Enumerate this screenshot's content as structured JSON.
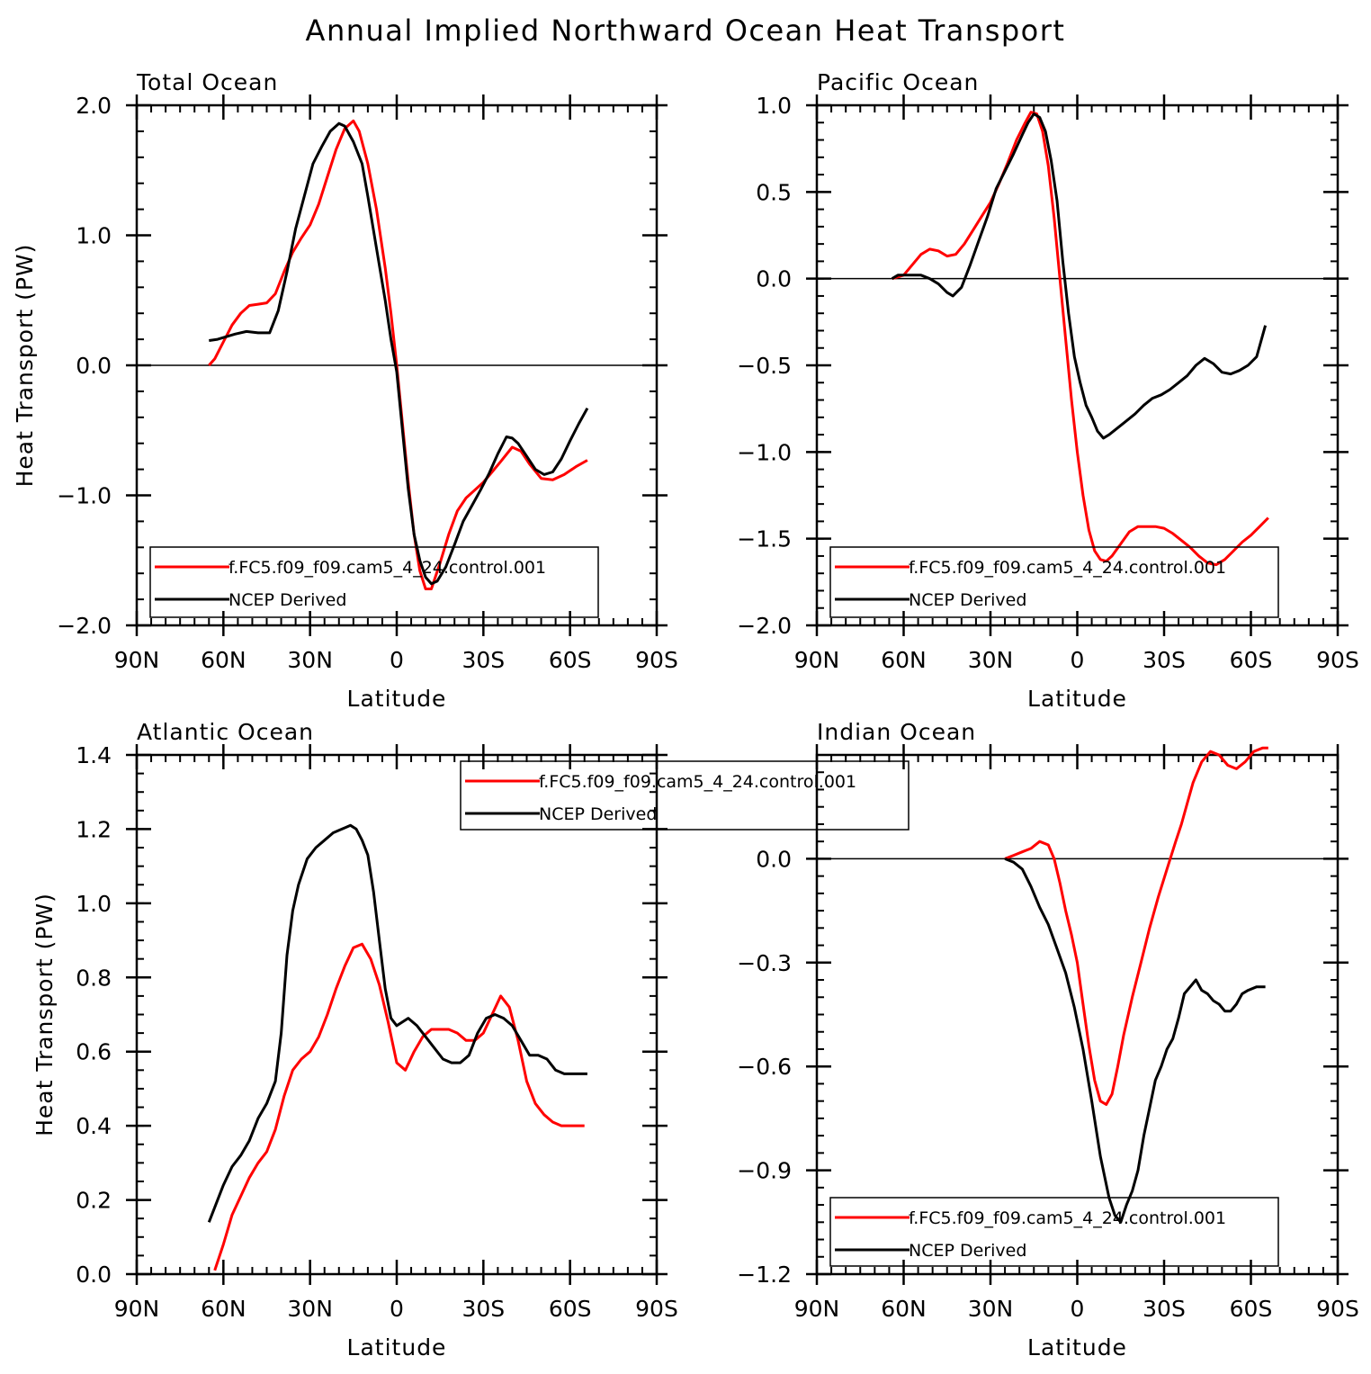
{
  "figure": {
    "title": "Annual Implied Northward Ocean Heat Transport"
  },
  "colors": {
    "model": "#ff0000",
    "obs": "#000000",
    "axis": "#000000"
  },
  "series_names": [
    "f.FC5.f09_f09.cam5_4_24.control.001",
    "NCEP Derived"
  ],
  "chart_data": [
    {
      "type": "line",
      "title": "Total Ocean",
      "xlabel": "Latitude",
      "ylabel": "Heat Transport (PW)",
      "xlim": [
        90,
        -90
      ],
      "ylim": [
        -2.0,
        2.0
      ],
      "x_ticks": [
        90,
        60,
        30,
        0,
        -30,
        -60,
        -90
      ],
      "x_tick_labels": [
        "90N",
        "60N",
        "30N",
        "0",
        "30S",
        "60S",
        "90S"
      ],
      "y_ticks": [
        -2.0,
        -1.0,
        0.0,
        1.0,
        2.0
      ],
      "y_tick_labels": [
        "−2.0",
        "−1.0",
        "0.0",
        "1.0",
        "2.0"
      ],
      "y_minor_step": 0.2,
      "zero_line": true,
      "legend_position": "bottom-left",
      "series": [
        {
          "name": "f.FC5.f09_f09.cam5_4_24.control.001",
          "color": "#ff0000",
          "x": [
            65,
            63,
            60,
            57,
            54,
            51,
            48,
            45,
            42,
            39,
            36,
            33,
            30,
            27,
            24,
            21,
            18,
            15,
            13,
            10,
            7,
            4,
            2,
            0,
            -2,
            -4,
            -6,
            -8,
            -10,
            -12,
            -15,
            -18,
            -21,
            -24,
            -27,
            -30,
            -33,
            -36,
            -40,
            -43,
            -46,
            -50,
            -54,
            -58,
            -62,
            -66
          ],
          "y": [
            0.0,
            0.05,
            0.18,
            0.31,
            0.4,
            0.46,
            0.47,
            0.48,
            0.55,
            0.72,
            0.87,
            0.98,
            1.08,
            1.24,
            1.45,
            1.66,
            1.82,
            1.88,
            1.8,
            1.55,
            1.2,
            0.75,
            0.4,
            0.0,
            -0.45,
            -0.9,
            -1.3,
            -1.58,
            -1.72,
            -1.72,
            -1.52,
            -1.3,
            -1.12,
            -1.02,
            -0.96,
            -0.9,
            -0.82,
            -0.74,
            -0.63,
            -0.66,
            -0.76,
            -0.87,
            -0.88,
            -0.84,
            -0.78,
            -0.73
          ]
        },
        {
          "name": "NCEP Derived",
          "color": "#000000",
          "x": [
            65,
            62,
            59,
            56,
            52,
            48,
            44,
            41,
            38,
            35,
            32,
            29,
            26,
            23,
            20,
            18,
            15,
            12,
            10,
            7,
            4,
            2,
            0,
            -2,
            -4,
            -6,
            -8,
            -10,
            -12,
            -14,
            -17,
            -20,
            -23,
            -26,
            -29,
            -32,
            -35,
            -38,
            -40,
            -42,
            -45,
            -48,
            -51,
            -54,
            -57,
            -60,
            -63,
            -66
          ],
          "y": [
            0.19,
            0.2,
            0.22,
            0.24,
            0.26,
            0.25,
            0.25,
            0.42,
            0.72,
            1.05,
            1.3,
            1.55,
            1.68,
            1.8,
            1.86,
            1.84,
            1.72,
            1.55,
            1.3,
            0.9,
            0.5,
            0.2,
            -0.05,
            -0.5,
            -0.95,
            -1.3,
            -1.5,
            -1.63,
            -1.68,
            -1.66,
            -1.55,
            -1.38,
            -1.2,
            -1.08,
            -0.96,
            -0.83,
            -0.68,
            -0.55,
            -0.56,
            -0.6,
            -0.7,
            -0.8,
            -0.84,
            -0.82,
            -0.72,
            -0.58,
            -0.45,
            -0.33
          ]
        }
      ]
    },
    {
      "type": "line",
      "title": "Pacific Ocean",
      "xlabel": "Latitude",
      "ylabel": "",
      "xlim": [
        90,
        -90
      ],
      "ylim": [
        -2.0,
        1.0
      ],
      "x_ticks": [
        90,
        60,
        30,
        0,
        -30,
        -60,
        -90
      ],
      "x_tick_labels": [
        "90N",
        "60N",
        "30N",
        "0",
        "30S",
        "60S",
        "90S"
      ],
      "y_ticks": [
        -2.0,
        -1.5,
        -1.0,
        -0.5,
        0.0,
        0.5,
        1.0
      ],
      "y_tick_labels": [
        "−2.0",
        "−1.5",
        "−1.0",
        "−0.5",
        "0.0",
        "0.5",
        "1.0"
      ],
      "y_minor_step": 0.1,
      "zero_line": true,
      "legend_position": "bottom-left",
      "series": [
        {
          "name": "f.FC5.f09_f09.cam5_4_24.control.001",
          "color": "#ff0000",
          "x": [
            64,
            60,
            57,
            54,
            51,
            48,
            45,
            42,
            39,
            36,
            33,
            30,
            27,
            24,
            21,
            18,
            16,
            14,
            12,
            10,
            8,
            6,
            4,
            2,
            0,
            -2,
            -4,
            -6,
            -8,
            -10,
            -12,
            -15,
            -18,
            -21,
            -24,
            -27,
            -30,
            -33,
            -36,
            -39,
            -42,
            -45,
            -48,
            -51,
            -54,
            -57,
            -60,
            -63,
            -66
          ],
          "y": [
            0.0,
            0.02,
            0.08,
            0.14,
            0.17,
            0.16,
            0.13,
            0.14,
            0.2,
            0.28,
            0.36,
            0.44,
            0.55,
            0.67,
            0.8,
            0.9,
            0.96,
            0.95,
            0.85,
            0.65,
            0.35,
            0.0,
            -0.35,
            -0.7,
            -1.0,
            -1.25,
            -1.45,
            -1.57,
            -1.62,
            -1.63,
            -1.6,
            -1.53,
            -1.46,
            -1.43,
            -1.43,
            -1.43,
            -1.44,
            -1.47,
            -1.51,
            -1.55,
            -1.6,
            -1.64,
            -1.65,
            -1.62,
            -1.57,
            -1.52,
            -1.48,
            -1.43,
            -1.38
          ]
        },
        {
          "name": "NCEP Derived",
          "color": "#000000",
          "x": [
            64,
            62,
            60,
            57,
            54,
            51,
            48,
            45,
            43,
            40,
            37,
            34,
            31,
            28,
            25,
            22,
            19,
            17,
            15,
            13,
            11,
            9,
            7,
            5,
            3,
            1,
            -1,
            -3,
            -5,
            -7,
            -9,
            -11,
            -14,
            -17,
            -20,
            -23,
            -26,
            -29,
            -32,
            -35,
            -38,
            -41,
            -44,
            -47,
            -50,
            -53,
            -56,
            -59,
            -62,
            -65
          ],
          "y": [
            0.0,
            0.02,
            0.02,
            0.02,
            0.02,
            0.0,
            -0.03,
            -0.08,
            -0.1,
            -0.05,
            0.08,
            0.22,
            0.36,
            0.52,
            0.62,
            0.72,
            0.83,
            0.9,
            0.95,
            0.93,
            0.85,
            0.68,
            0.45,
            0.1,
            -0.2,
            -0.45,
            -0.6,
            -0.73,
            -0.8,
            -0.88,
            -0.92,
            -0.9,
            -0.86,
            -0.82,
            -0.78,
            -0.73,
            -0.69,
            -0.67,
            -0.64,
            -0.6,
            -0.56,
            -0.5,
            -0.46,
            -0.49,
            -0.54,
            -0.55,
            -0.53,
            -0.5,
            -0.45,
            -0.27
          ]
        }
      ]
    },
    {
      "type": "line",
      "title": "Atlantic Ocean",
      "xlabel": "Latitude",
      "ylabel": "Heat Transport (PW)",
      "xlim": [
        90,
        -90
      ],
      "ylim": [
        0.0,
        1.4
      ],
      "x_ticks": [
        90,
        60,
        30,
        0,
        -30,
        -60,
        -90
      ],
      "x_tick_labels": [
        "90N",
        "60N",
        "30N",
        "0",
        "30S",
        "60S",
        "90S"
      ],
      "y_ticks": [
        0.0,
        0.2,
        0.4,
        0.6,
        0.8,
        1.0,
        1.2,
        1.4
      ],
      "y_tick_labels": [
        "0.0",
        "0.2",
        "0.4",
        "0.6",
        "0.8",
        "1.0",
        "1.2",
        "1.4"
      ],
      "y_minor_step": 0.05,
      "zero_line": false,
      "legend_position": "top-center",
      "series": [
        {
          "name": "f.FC5.f09_f09.cam5_4_24.control.001",
          "color": "#ff0000",
          "x": [
            63,
            60,
            57,
            54,
            51,
            48,
            45,
            42,
            39,
            36,
            33,
            30,
            27,
            24,
            21,
            18,
            15,
            12,
            9,
            6,
            3,
            0,
            -3,
            -6,
            -9,
            -12,
            -15,
            -18,
            -21,
            -24,
            -27,
            -30,
            -33,
            -36,
            -39,
            -42,
            -45,
            -48,
            -51,
            -54,
            -57,
            -60,
            -63,
            -65
          ],
          "y": [
            0.01,
            0.08,
            0.16,
            0.21,
            0.26,
            0.3,
            0.33,
            0.39,
            0.48,
            0.55,
            0.58,
            0.6,
            0.64,
            0.7,
            0.77,
            0.83,
            0.88,
            0.89,
            0.85,
            0.78,
            0.68,
            0.57,
            0.55,
            0.6,
            0.64,
            0.66,
            0.66,
            0.66,
            0.65,
            0.63,
            0.63,
            0.65,
            0.7,
            0.75,
            0.72,
            0.63,
            0.52,
            0.46,
            0.43,
            0.41,
            0.4,
            0.4,
            0.4,
            0.4
          ]
        },
        {
          "name": "NCEP Derived",
          "color": "#000000",
          "x": [
            65,
            63,
            60,
            57,
            54,
            51,
            48,
            45,
            42,
            40,
            38,
            36,
            34,
            31,
            28,
            25,
            22,
            19,
            16,
            14,
            12,
            10,
            8,
            6,
            4,
            2,
            0,
            -2,
            -4,
            -7,
            -10,
            -13,
            -16,
            -19,
            -22,
            -25,
            -28,
            -31,
            -34,
            -37,
            -40,
            -43,
            -46,
            -49,
            -52,
            -55,
            -58,
            -61,
            -64,
            -66
          ],
          "y": [
            0.14,
            0.18,
            0.24,
            0.29,
            0.32,
            0.36,
            0.42,
            0.46,
            0.52,
            0.65,
            0.86,
            0.98,
            1.05,
            1.12,
            1.15,
            1.17,
            1.19,
            1.2,
            1.21,
            1.2,
            1.17,
            1.13,
            1.03,
            0.9,
            0.77,
            0.69,
            0.67,
            0.68,
            0.69,
            0.67,
            0.64,
            0.61,
            0.58,
            0.57,
            0.57,
            0.59,
            0.65,
            0.69,
            0.7,
            0.69,
            0.67,
            0.63,
            0.59,
            0.59,
            0.58,
            0.55,
            0.54,
            0.54,
            0.54,
            0.54
          ]
        }
      ]
    },
    {
      "type": "line",
      "title": "Indian Ocean",
      "xlabel": "Latitude",
      "ylabel": "",
      "xlim": [
        90,
        -90
      ],
      "ylim": [
        -1.2,
        0.3
      ],
      "x_ticks": [
        90,
        60,
        30,
        0,
        -30,
        -60,
        -90
      ],
      "x_tick_labels": [
        "90N",
        "60N",
        "30N",
        "0",
        "30S",
        "60S",
        "90S"
      ],
      "y_ticks": [
        -1.2,
        -0.9,
        -0.6,
        -0.3,
        0.0
      ],
      "y_tick_labels": [
        "−1.2",
        "−0.9",
        "−0.6",
        "−0.3",
        "0.0"
      ],
      "y_minor_step": 0.05,
      "zero_line": true,
      "legend_position": "bottom-left",
      "series": [
        {
          "name": "f.FC5.f09_f09.cam5_4_24.control.001",
          "color": "#ff0000",
          "x": [
            25,
            22,
            19,
            16,
            13,
            10,
            8,
            6,
            4,
            2,
            0,
            -2,
            -4,
            -6,
            -8,
            -10,
            -12,
            -14,
            -16,
            -19,
            -22,
            -25,
            -28,
            -31,
            -34,
            -36,
            -38,
            -40,
            -43,
            -46,
            -49,
            -52,
            -55,
            -58,
            -61,
            -64,
            -66
          ],
          "y": [
            0.0,
            0.01,
            0.02,
            0.03,
            0.05,
            0.04,
            0.0,
            -0.07,
            -0.15,
            -0.22,
            -0.3,
            -0.42,
            -0.54,
            -0.64,
            -0.7,
            -0.71,
            -0.68,
            -0.6,
            -0.51,
            -0.4,
            -0.3,
            -0.2,
            -0.11,
            -0.03,
            0.05,
            0.1,
            0.16,
            0.22,
            0.28,
            0.31,
            0.3,
            0.27,
            0.26,
            0.28,
            0.31,
            0.32,
            0.32
          ]
        },
        {
          "name": "NCEP Derived",
          "color": "#000000",
          "x": [
            25,
            22,
            19,
            16,
            13,
            10,
            7,
            4,
            1,
            -2,
            -5,
            -8,
            -11,
            -13,
            -15,
            -17,
            -19,
            -21,
            -23,
            -25,
            -27,
            -29,
            -31,
            -33,
            -35,
            -37,
            -39,
            -41,
            -43,
            -45,
            -47,
            -49,
            -51,
            -53,
            -55,
            -57,
            -59,
            -62,
            -65
          ],
          "y": [
            0.0,
            -0.01,
            -0.03,
            -0.08,
            -0.14,
            -0.19,
            -0.26,
            -0.33,
            -0.43,
            -0.55,
            -0.7,
            -0.86,
            -0.98,
            -1.03,
            -1.05,
            -1.0,
            -0.96,
            -0.9,
            -0.8,
            -0.72,
            -0.64,
            -0.6,
            -0.55,
            -0.52,
            -0.46,
            -0.39,
            -0.37,
            -0.35,
            -0.38,
            -0.39,
            -0.41,
            -0.42,
            -0.44,
            -0.44,
            -0.42,
            -0.39,
            -0.38,
            -0.37,
            -0.37
          ]
        }
      ]
    }
  ]
}
